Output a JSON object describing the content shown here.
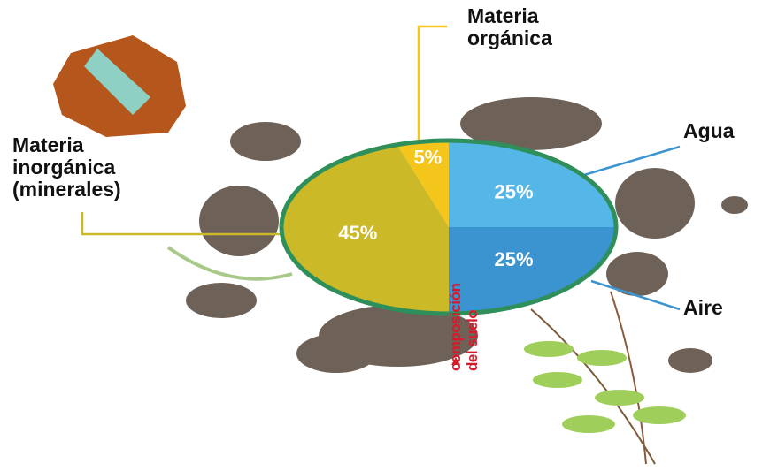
{
  "chart_data": {
    "type": "pie",
    "categories": [
      "Agua",
      "Aire",
      "Materia\ninorgánica\n(minerales)",
      "Materia\norgánica"
    ],
    "values": [
      25,
      25,
      45,
      5
    ],
    "value_labels": [
      "25%",
      "25%",
      "45%",
      "5%"
    ],
    "colors": [
      "#55b6e8",
      "#3b93cf",
      "#cbb927",
      "#f4c51a"
    ],
    "annotation": "composición\ndel suelo"
  }
}
